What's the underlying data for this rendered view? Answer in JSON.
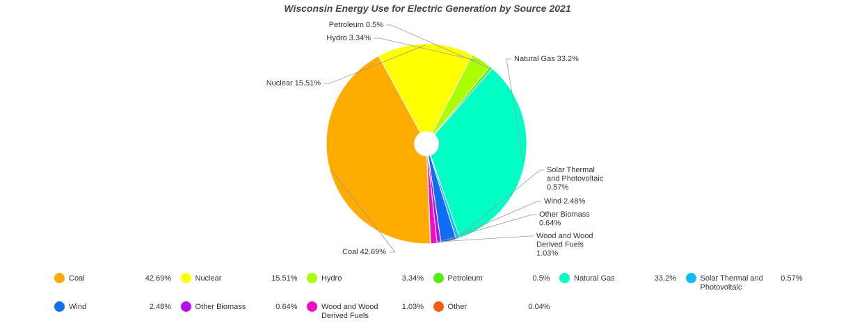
{
  "chart_data": {
    "type": "pie",
    "title": "Wisconsin Energy Use for Electric Generation by Source 2021",
    "legend_position": "bottom",
    "slices": [
      {
        "name": "Coal",
        "value": 42.69,
        "label": "Coal 42.69%",
        "legend_value": "42.69%",
        "color": "#FFAB00"
      },
      {
        "name": "Nuclear",
        "value": 15.51,
        "label": "Nuclear 15.51%",
        "legend_value": "15.51%",
        "color": "#FFFF00"
      },
      {
        "name": "Hydro",
        "value": 3.34,
        "label": "Hydro 3.34%",
        "legend_value": "3.34%",
        "color": "#AAFF00"
      },
      {
        "name": "Petroleum",
        "value": 0.5,
        "label": "Petroleum 0.5%",
        "legend_value": "0.5%",
        "color": "#55EE11"
      },
      {
        "name": "Natural Gas",
        "value": 33.2,
        "label": "Natural Gas 33.2%",
        "legend_value": "33.2%",
        "color": "#00FFC4"
      },
      {
        "name": "Solar Thermal and Photovoltaic",
        "value": 0.57,
        "label": "Solar Thermal and Photovoltaic 0.57%",
        "legend_value": "0.57%",
        "color": "#11BBF5"
      },
      {
        "name": "Wind",
        "value": 2.48,
        "label": "Wind 2.48%",
        "legend_value": "2.48%",
        "color": "#0F6EF5"
      },
      {
        "name": "Other Biomass",
        "value": 0.64,
        "label": "Other Biomass 0.64%",
        "legend_value": "0.64%",
        "color": "#B70EF5"
      },
      {
        "name": "Wood and Wood Derived Fuels",
        "value": 1.03,
        "label": "Wood and Wood Derived Fuels 1.03%",
        "legend_value": "1.03%",
        "color": "#F50EBF"
      },
      {
        "name": "Other",
        "value": 0.04,
        "label": "",
        "legend_value": "0.04%",
        "color": "#F55A0E"
      }
    ]
  }
}
